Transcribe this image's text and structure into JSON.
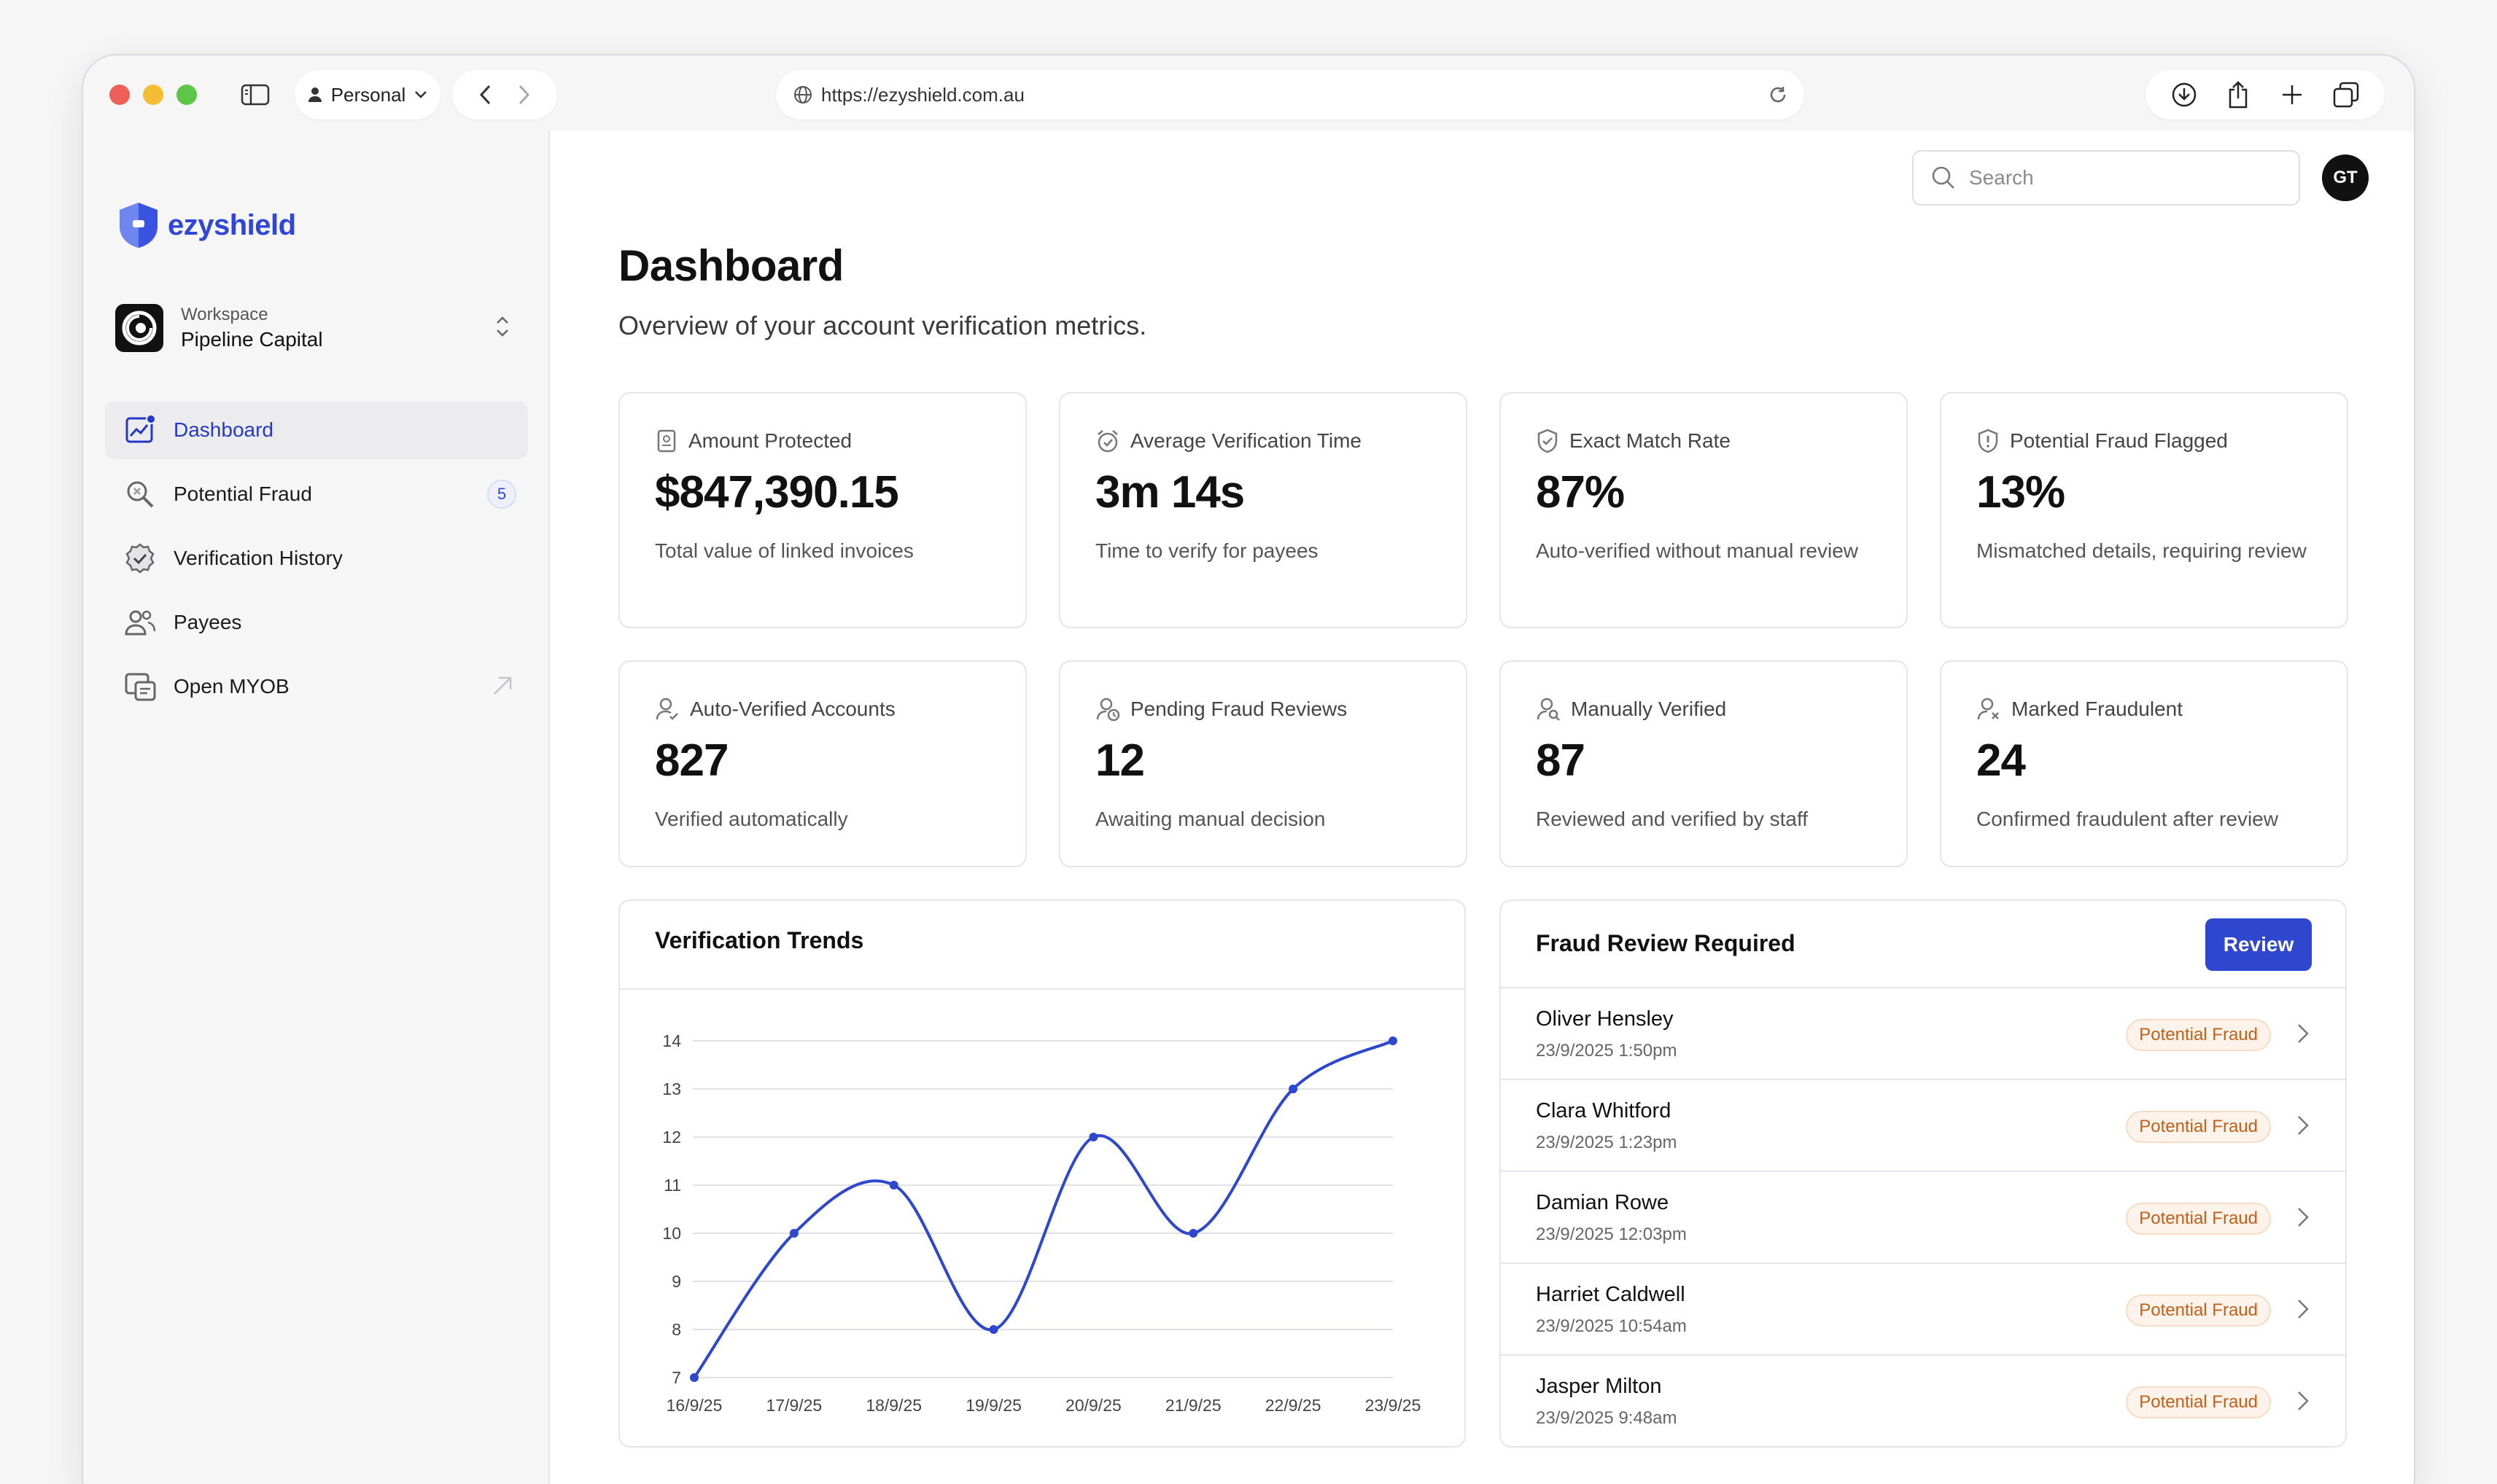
{
  "browser": {
    "profile": "Personal",
    "url": "https://ezyshield.com.au"
  },
  "brand": {
    "name": "ezyshield",
    "color": "#2f46d8"
  },
  "workspace": {
    "label": "Workspace",
    "name": "Pipeline Capital"
  },
  "sidebar": {
    "items": [
      {
        "label": "Dashboard",
        "icon": "dashboard-chart-icon",
        "active": true
      },
      {
        "label": "Potential Fraud",
        "icon": "fraud-search-icon",
        "badge": "5"
      },
      {
        "label": "Verification History",
        "icon": "verified-badge-icon"
      },
      {
        "label": "Payees",
        "icon": "users-icon"
      },
      {
        "label": "Open MYOB",
        "icon": "myob-icon",
        "external": true
      }
    ]
  },
  "header": {
    "search_placeholder": "Search",
    "avatar_initials": "GT"
  },
  "page": {
    "title": "Dashboard",
    "subtitle": "Overview of your account verification metrics."
  },
  "stats": [
    {
      "label": "Amount Protected",
      "value": "$847,390.15",
      "desc": "Total value of linked invoices",
      "icon": "receipt-icon"
    },
    {
      "label": "Average Verification Time",
      "value": "3m 14s",
      "desc": "Time to verify for payees",
      "icon": "alarm-clock-icon"
    },
    {
      "label": "Exact Match Rate",
      "value": "87%",
      "desc": "Auto-verified without manual review",
      "icon": "shield-check-icon"
    },
    {
      "label": "Potential Fraud Flagged",
      "value": "13%",
      "desc": "Mismatched details, requiring review",
      "icon": "shield-alert-icon"
    },
    {
      "label": "Auto-Verified Accounts",
      "value": "827",
      "desc": "Verified automatically",
      "icon": "user-check-icon"
    },
    {
      "label": "Pending Fraud Reviews",
      "value": "12",
      "desc": "Awaiting manual decision",
      "icon": "user-pending-icon"
    },
    {
      "label": "Manually Verified",
      "value": "87",
      "desc": "Reviewed and verified by staff",
      "icon": "user-search-icon"
    },
    {
      "label": "Marked Fraudulent",
      "value": "24",
      "desc": "Confirmed fraudulent after review",
      "icon": "user-x-icon"
    }
  ],
  "chart_data": {
    "type": "line",
    "title": "Verification Trends",
    "categories": [
      "16/9/25",
      "17/9/25",
      "18/9/25",
      "19/9/25",
      "20/9/25",
      "21/9/25",
      "22/9/25",
      "23/9/25"
    ],
    "series": [
      {
        "values": [
          7,
          10,
          11,
          8,
          12,
          10,
          13,
          14
        ],
        "color": "#2f46cf"
      }
    ],
    "ylim": [
      7,
      14
    ],
    "yticks": [
      7,
      8,
      9,
      10,
      11,
      12,
      13,
      14
    ],
    "grid": true,
    "xlabel": "",
    "ylabel": ""
  },
  "fraud_review": {
    "title": "Fraud Review Required",
    "button_label": "Review",
    "rows": [
      {
        "name": "Oliver Hensley",
        "date": "23/9/2025 1:50pm",
        "status": "Potential Fraud"
      },
      {
        "name": "Clara Whitford",
        "date": "23/9/2025 1:23pm",
        "status": "Potential Fraud"
      },
      {
        "name": "Damian Rowe",
        "date": "23/9/2025 12:03pm",
        "status": "Potential Fraud"
      },
      {
        "name": "Harriet Caldwell",
        "date": "23/9/2025 10:54am",
        "status": "Potential Fraud"
      },
      {
        "name": "Jasper Milton",
        "date": "23/9/2025 9:48am",
        "status": "Potential Fraud"
      }
    ]
  }
}
